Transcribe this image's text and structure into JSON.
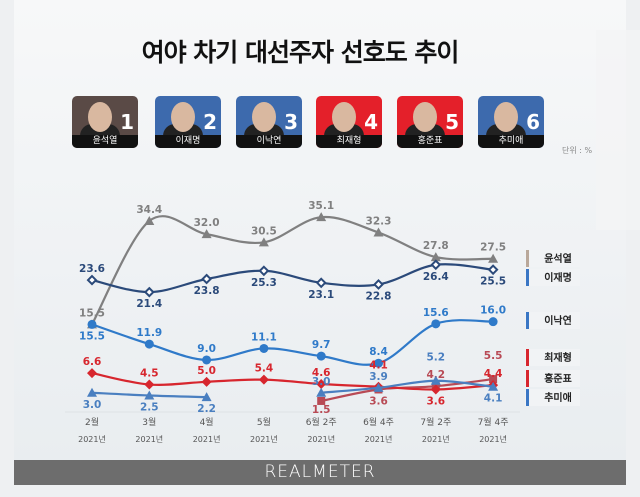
{
  "title": "여야 차기 대선주자 선호도 추이",
  "unit": "단위 : %",
  "footer": "REALMETER",
  "candidates": [
    {
      "name": "윤석열",
      "num": "1",
      "color": "#5a4a46"
    },
    {
      "name": "이재명",
      "num": "2",
      "color": "#3d6aad"
    },
    {
      "name": "이낙연",
      "num": "3",
      "color": "#3d6aad"
    },
    {
      "name": "최재형",
      "num": "4",
      "color": "#e4202a"
    },
    {
      "name": "홍준표",
      "num": "5",
      "color": "#e4202a"
    },
    {
      "name": "추미애",
      "num": "6",
      "color": "#3d6aad"
    }
  ],
  "chart_data": {
    "type": "line",
    "categories": [
      "2월",
      "3월",
      "4월",
      "5월",
      "6월 2주",
      "6월 4주",
      "7월 2주",
      "7월 4주"
    ],
    "category_year": "2021년",
    "series": [
      {
        "name": "윤석열",
        "color": "#808080",
        "legend_color": "#b9a89a",
        "marker": "triangle",
        "values": [
          15.5,
          34.4,
          32.0,
          30.5,
          35.1,
          32.3,
          27.8,
          27.5
        ]
      },
      {
        "name": "이재명",
        "color": "#2b4a7a",
        "legend_color": "#3a76c4",
        "marker": "open-diamond",
        "values": [
          23.6,
          21.4,
          23.8,
          25.3,
          23.1,
          22.8,
          26.4,
          25.5
        ]
      },
      {
        "name": "이낙연",
        "color": "#2f7ac9",
        "legend_color": "#3a76c4",
        "marker": "circle",
        "values": [
          15.5,
          11.9,
          9.0,
          11.1,
          9.7,
          8.4,
          15.6,
          16.0
        ]
      },
      {
        "name": "최재형",
        "color": "#b84a55",
        "legend_color": "#d7262e",
        "marker": "square",
        "values": [
          null,
          null,
          null,
          null,
          1.5,
          3.6,
          4.2,
          5.5
        ]
      },
      {
        "name": "홍준표",
        "color": "#d7262e",
        "legend_color": "#d7262e",
        "marker": "diamond",
        "values": [
          6.6,
          4.5,
          5.0,
          5.4,
          4.6,
          4.1,
          3.6,
          4.4
        ]
      },
      {
        "name": "추미애",
        "color": "#4a7fc0",
        "legend_color": "#3a76c4",
        "marker": "triangle",
        "values": [
          3.0,
          2.5,
          2.2,
          null,
          3.0,
          3.9,
          5.2,
          4.1
        ]
      }
    ],
    "legend": "right",
    "grid": false
  }
}
